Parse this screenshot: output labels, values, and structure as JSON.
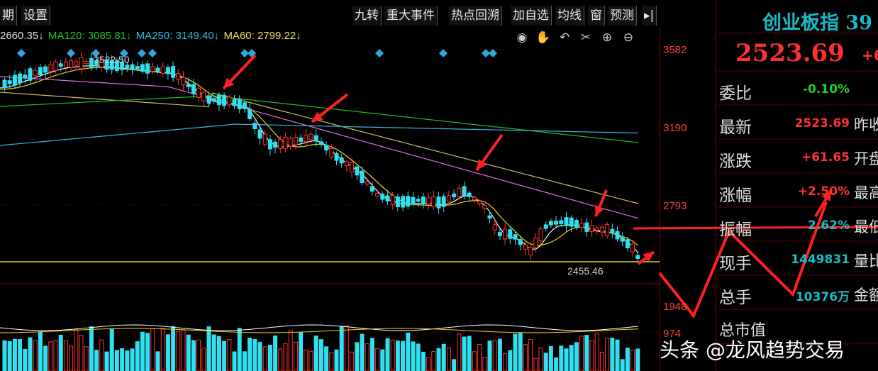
{
  "toolbar": {
    "left_items": [
      "期",
      "设置"
    ],
    "right_items": [
      "九转",
      "重大事件",
      "热点回溯",
      "加自选",
      "均线",
      "窗",
      "预测"
    ]
  },
  "ma": {
    "ma_first": "2660.35↓",
    "ma120": "MA120: 3085.81↓",
    "ma250": "MA250: 3149.40↓",
    "ma60": "MA60: 2799.22↓"
  },
  "chart_labels": {
    "high": "3522.50",
    "low": "2455.46",
    "y_ticks": [
      "3582",
      "3190",
      "2793"
    ],
    "vol_ticks": [
      "1948",
      "974"
    ]
  },
  "chart_data": {
    "type": "candlestick",
    "y_ticks": [
      3582,
      3190,
      2793
    ],
    "ylim": [
      2380,
      3660
    ],
    "high_label": 3522.5,
    "low_label": 2455.46,
    "volume_ticks": [
      1948,
      974
    ]
  },
  "side": {
    "title": "创业板指 39",
    "price": "2523.69",
    "change_head": "+6",
    "rows": [
      {
        "label": "委比",
        "value": "-0.10%",
        "value_color": "#20d020",
        "extra": ""
      },
      {
        "label": "最新",
        "value": "2523.69",
        "value_color": "#ff3030",
        "extra": "昨收"
      },
      {
        "label": "涨跌",
        "value": "+61.65",
        "value_color": "#ff3030",
        "extra": "开盘"
      },
      {
        "label": "涨幅",
        "value": "+2.50%",
        "value_color": "#ff3030",
        "extra": "最高"
      },
      {
        "label": "振幅",
        "value": "2.62%",
        "value_color": "#1bb8c8",
        "extra": "最低"
      },
      {
        "label": "现手",
        "value": "1449831",
        "value_color": "#1bb8c8",
        "extra": "量比"
      },
      {
        "label": "总手",
        "value": "10376万",
        "value_color": "#1bb8c8",
        "extra": "金额"
      },
      {
        "label": "总市值",
        "value": "",
        "value_color": "#ddd",
        "extra": ""
      }
    ]
  },
  "watermark": "头条 @龙风趋势交易",
  "colors": {
    "up": "#ff3030",
    "down": "#30e0f0",
    "ma5": "#ffffff",
    "ma10": "#e8d020",
    "ma20": "#e070e0",
    "ma60": "#c8c060",
    "ma120": "#20c020",
    "ma250": "#30b8e0",
    "annot": "#ff2020"
  }
}
